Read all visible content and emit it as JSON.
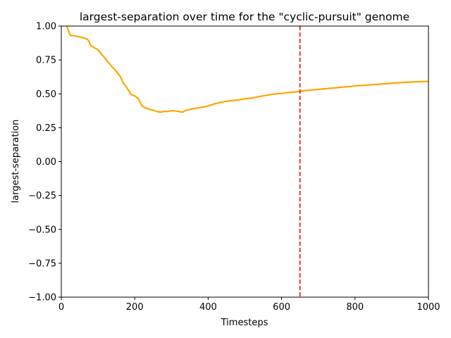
{
  "chart_data": {
    "type": "line",
    "title": "largest-separation over time for the \"cyclic-pursuit\" genome",
    "xlabel": "Timesteps",
    "ylabel": "largest-separation",
    "xlim": [
      0,
      1000
    ],
    "ylim": [
      -1.0,
      1.0
    ],
    "x_ticks": [
      0,
      200,
      400,
      600,
      800,
      1000
    ],
    "x_tick_labels": [
      "0",
      "200",
      "400",
      "600",
      "800",
      "1000"
    ],
    "y_ticks": [
      -1.0,
      -0.75,
      -0.5,
      -0.25,
      0.0,
      0.25,
      0.5,
      0.75,
      1.0
    ],
    "y_tick_labels": [
      "−1.00",
      "−0.75",
      "−0.50",
      "−0.25",
      "0.00",
      "0.25",
      "0.50",
      "0.75",
      "1.00"
    ],
    "grid": false,
    "legend": "none",
    "series": [
      {
        "color": "#ffa500",
        "x": [
          0,
          15,
          20,
          25,
          30,
          40,
          50,
          60,
          70,
          75,
          80,
          90,
          100,
          110,
          120,
          130,
          140,
          150,
          160,
          170,
          180,
          190,
          200,
          210,
          220,
          230,
          240,
          250,
          260,
          270,
          280,
          290,
          300,
          310,
          320,
          330,
          340,
          350,
          360,
          370,
          380,
          390,
          400,
          410,
          420,
          430,
          440,
          450,
          460,
          480,
          500,
          520,
          540,
          560,
          580,
          600,
          620,
          640,
          660,
          680,
          700,
          720,
          740,
          760,
          780,
          800,
          820,
          840,
          860,
          880,
          900,
          920,
          940,
          960,
          980,
          1000
        ],
        "y": [
          1.08,
          1.0,
          0.96,
          0.93,
          0.93,
          0.925,
          0.92,
          0.915,
          0.905,
          0.89,
          0.855,
          0.84,
          0.825,
          0.79,
          0.76,
          0.725,
          0.695,
          0.665,
          0.63,
          0.575,
          0.54,
          0.495,
          0.485,
          0.465,
          0.41,
          0.395,
          0.385,
          0.38,
          0.37,
          0.365,
          0.37,
          0.37,
          0.375,
          0.375,
          0.37,
          0.365,
          0.378,
          0.385,
          0.39,
          0.395,
          0.4,
          0.405,
          0.41,
          0.42,
          0.428,
          0.435,
          0.44,
          0.445,
          0.448,
          0.455,
          0.463,
          0.47,
          0.48,
          0.49,
          0.498,
          0.503,
          0.51,
          0.515,
          0.522,
          0.528,
          0.533,
          0.538,
          0.543,
          0.548,
          0.553,
          0.558,
          0.562,
          0.566,
          0.57,
          0.574,
          0.578,
          0.582,
          0.585,
          0.588,
          0.59,
          0.592
        ]
      }
    ],
    "reference_lines": [
      {
        "orientation": "vertical",
        "x": 650,
        "color": "#ff0000",
        "style": "dashed"
      }
    ]
  }
}
